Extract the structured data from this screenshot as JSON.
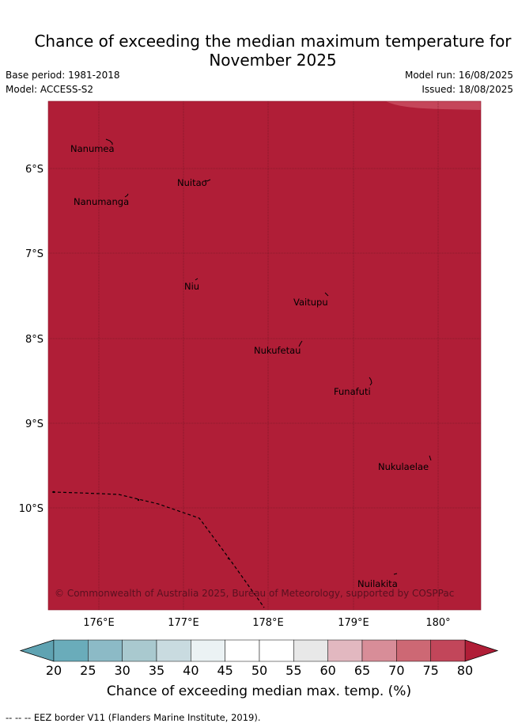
{
  "title_line1": "Chance of exceeding the median maximum temperature for",
  "title_line2": "November 2025",
  "base_period": "Base period: 1981-2018",
  "model": "Model: ACCESS-S2",
  "model_run": "Model run: 16/08/2025",
  "issued": "Issued: 18/08/2025",
  "map": {
    "fill_color": "#b01e37",
    "corner_color": "#c5465a",
    "lat_labels": [
      "6°S",
      "7°S",
      "8°S",
      "9°S",
      "10°S"
    ],
    "lon_labels": [
      "176°E",
      "177°E",
      "178°E",
      "179°E",
      "180°"
    ],
    "islands": [
      "Nanumea",
      "Nuitao",
      "Nanumanga",
      "Niu",
      "Vaitupu",
      "Nukufetau",
      "Funafuti",
      "Nukulaelae",
      "Nuilakita"
    ],
    "copyright": "© Commonwealth of Australia 2025, Bureau of Meteorology, supported by COSPPac"
  },
  "colorbar": {
    "ticks": [
      "20",
      "25",
      "30",
      "35",
      "40",
      "45",
      "50",
      "55",
      "60",
      "65",
      "70",
      "75",
      "80"
    ],
    "colors": [
      "#6aacba",
      "#8cbac6",
      "#a9c9cf",
      "#c9dbe0",
      "#ebf2f4",
      "#ffffff",
      "#ffffff",
      "#e8e8e8",
      "#e2b8c0",
      "#d88d98",
      "#cd6874",
      "#c2465a"
    ],
    "under_color": "#5fa3b2",
    "over_color": "#b01e37",
    "label": "Chance of exceeding median max. temp. (%)"
  },
  "footer": "--  --  -- EEZ border V11 (Flanders Marine Institute, 2019)."
}
